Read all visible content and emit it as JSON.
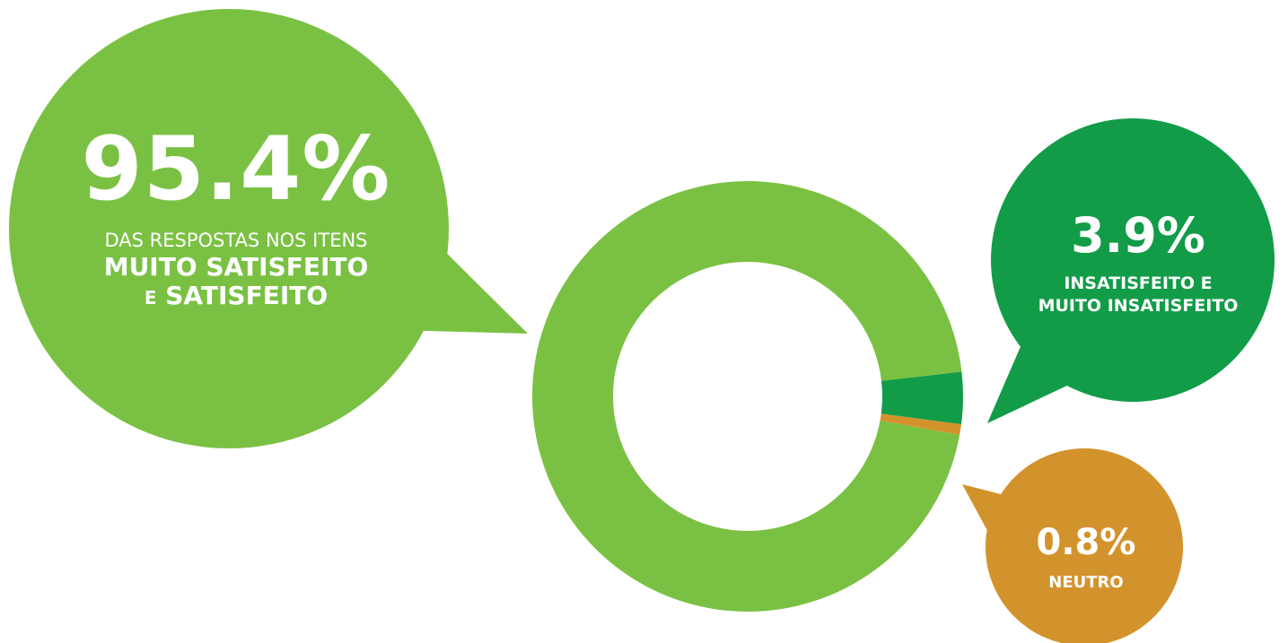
{
  "chart_data": {
    "type": "pie",
    "donut": true,
    "slices": [
      {
        "label": "MUITO SATISFEITO E SATISFEITO",
        "value": 95.4,
        "color": "#7ac143"
      },
      {
        "label": "INSATISFEITO E MUITO INSATISFEITO",
        "value": 3.9,
        "color": "#129c48"
      },
      {
        "label": "NEUTRO",
        "value": 0.8,
        "color": "#d3932c"
      }
    ]
  },
  "callouts": {
    "main": {
      "value": "95.4%",
      "line1": "DAS RESPOSTAS NOS ITENS",
      "line2": "MUITO SATISFEITO",
      "line3_prefix": "E",
      "line3_bold": "SATISFEITO",
      "color": "#7ac143"
    },
    "insatisfeito": {
      "value": "3.9%",
      "line1": "INSATISFEITO E",
      "line2": "MUITO INSATISFEITO",
      "color": "#129c48"
    },
    "neutro": {
      "value": "0.8%",
      "line1": "NEUTRO",
      "color": "#d3932c"
    }
  }
}
